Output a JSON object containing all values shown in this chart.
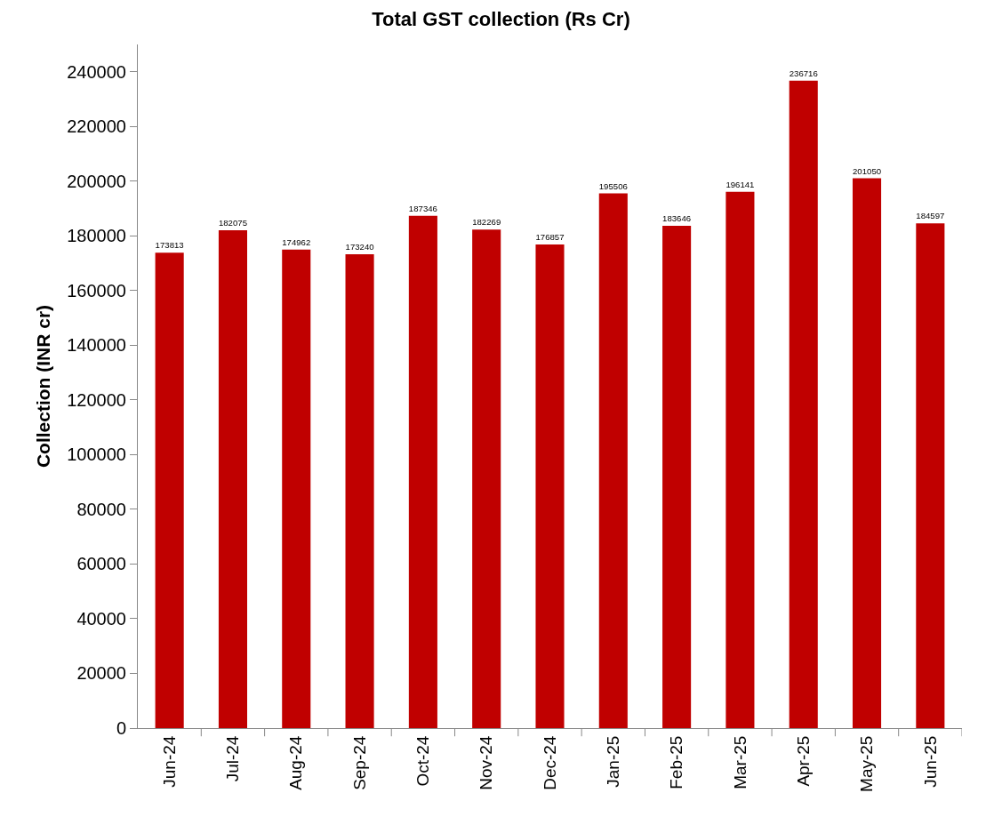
{
  "chart_data": {
    "type": "bar",
    "title": "Total GST collection (Rs Cr)",
    "ylabel": "Collection (INR cr)",
    "categories": [
      "Jun-24",
      "Jul-24",
      "Aug-24",
      "Sep-24",
      "Oct-24",
      "Nov-24",
      "Dec-24",
      "Jan-25",
      "Feb-25",
      "Mar-25",
      "Apr-25",
      "May-25",
      "Jun-25"
    ],
    "values": [
      173813,
      182075,
      174962,
      173240,
      187346,
      182269,
      176857,
      195506,
      183646,
      196141,
      236716,
      201050,
      184597
    ],
    "color": "#c00000",
    "ylim": [
      0,
      250000
    ],
    "yticks": [
      0,
      20000,
      40000,
      60000,
      80000,
      100000,
      120000,
      140000,
      160000,
      180000,
      200000,
      220000,
      240000
    ],
    "grid": false,
    "legend": false,
    "data_labels": true
  }
}
